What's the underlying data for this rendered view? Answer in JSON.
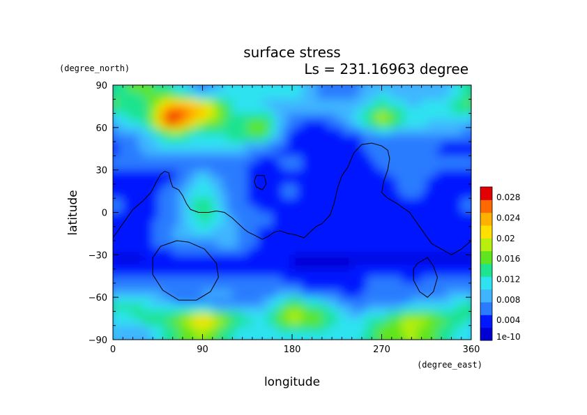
{
  "chart_data": {
    "type": "heatmap",
    "title": "surface stress",
    "subtitle": "Ls = 231.16963 degree",
    "xlabel": "longitude",
    "ylabel": "latitude",
    "x_unit": "(degree_east)",
    "y_unit": "(degree_north)",
    "xlim": [
      0,
      360
    ],
    "ylim": [
      -90,
      90
    ],
    "x_ticks": [
      "0",
      "90",
      "180",
      "270",
      "360"
    ],
    "y_ticks": [
      "90",
      "60",
      "30",
      "0",
      "-30",
      "-60",
      "-90"
    ],
    "colorbar": {
      "tick_labels": [
        "0.028",
        "0.024",
        "0.02",
        "0.016",
        "0.012",
        "0.008",
        "0.004",
        "1e-10"
      ],
      "tick_values": [
        0.028,
        0.024,
        0.02,
        0.016,
        0.012,
        0.008,
        0.004,
        0
      ],
      "range": [
        0,
        0.03
      ],
      "colors": [
        "#0000d2",
        "#0018ff",
        "#2a7bff",
        "#3fb5ff",
        "#2fe2f0",
        "#1ee38f",
        "#5fe51f",
        "#b7ef0e",
        "#ffe000",
        "#ffb100",
        "#ff6a00",
        "#e20000"
      ]
    },
    "field": {
      "lon": [
        0,
        30,
        60,
        90,
        120,
        150,
        180,
        210,
        240,
        270,
        300,
        330,
        360
      ],
      "lat": [
        85,
        75,
        65,
        55,
        45,
        35,
        25,
        15,
        5,
        -5,
        -15,
        -25,
        -35,
        -45,
        -55,
        -65,
        -75,
        -85
      ],
      "values": [
        [
          0.014,
          0.016,
          0.013,
          0.006,
          0.012,
          0.01,
          0.012,
          0.006,
          0.006,
          0.01,
          0.008,
          0.008,
          0.014
        ],
        [
          0.016,
          0.012,
          0.026,
          0.024,
          0.012,
          0.01,
          0.008,
          0.01,
          0.008,
          0.014,
          0.01,
          0.012,
          0.016
        ],
        [
          0.01,
          0.014,
          0.03,
          0.02,
          0.014,
          0.016,
          0.006,
          0.004,
          0.01,
          0.02,
          0.012,
          0.01,
          0.01
        ],
        [
          0.006,
          0.008,
          0.016,
          0.01,
          0.014,
          0.016,
          0.004,
          0.004,
          0.004,
          0.008,
          0.006,
          0.008,
          0.006
        ],
        [
          0.004,
          0.008,
          0.01,
          0.01,
          0.01,
          0.006,
          0.004,
          0.003,
          0.004,
          0.006,
          0.006,
          0.004,
          0.004
        ],
        [
          0.006,
          0.006,
          0.006,
          0.004,
          0.006,
          0.004,
          0.006,
          0.004,
          0.003,
          0.006,
          0.008,
          0.006,
          0.006
        ],
        [
          0.004,
          0.004,
          0.004,
          0.01,
          0.006,
          0.004,
          0.004,
          0.003,
          0.003,
          0.004,
          0.006,
          0.004,
          0.004
        ],
        [
          0.004,
          0.004,
          0.006,
          0.012,
          0.006,
          0.004,
          0.006,
          0.003,
          0.003,
          0.004,
          0.006,
          0.004,
          0.004
        ],
        [
          0.006,
          0.004,
          0.006,
          0.016,
          0.006,
          0.004,
          0.004,
          0.003,
          0.003,
          0.003,
          0.004,
          0.004,
          0.006
        ],
        [
          0.004,
          0.004,
          0.006,
          0.014,
          0.008,
          0.006,
          0.004,
          0.003,
          0.003,
          0.004,
          0.004,
          0.003,
          0.004
        ],
        [
          0.004,
          0.004,
          0.008,
          0.01,
          0.008,
          0.004,
          0.004,
          0.003,
          0.003,
          0.004,
          0.004,
          0.003,
          0.004
        ],
        [
          0.003,
          0.004,
          0.006,
          0.006,
          0.008,
          0.004,
          0.004,
          0.003,
          0.003,
          0.003,
          0.003,
          0.003,
          0.003
        ],
        [
          0.002,
          0.002,
          0.002,
          0.002,
          0.002,
          0.002,
          0.002,
          0.002,
          0.002,
          0.002,
          0.002,
          0.002,
          0.002
        ],
        [
          0.004,
          0.004,
          0.006,
          0.004,
          0.004,
          0.006,
          0.004,
          0.003,
          0.004,
          0.006,
          0.004,
          0.006,
          0.004
        ],
        [
          0.008,
          0.008,
          0.006,
          0.008,
          0.008,
          0.006,
          0.006,
          0.004,
          0.004,
          0.006,
          0.006,
          0.006,
          0.008
        ],
        [
          0.014,
          0.012,
          0.008,
          0.006,
          0.006,
          0.008,
          0.016,
          0.012,
          0.006,
          0.006,
          0.008,
          0.01,
          0.014
        ],
        [
          0.01,
          0.014,
          0.016,
          0.024,
          0.016,
          0.012,
          0.02,
          0.016,
          0.01,
          0.014,
          0.02,
          0.016,
          0.012
        ],
        [
          0.01,
          0.008,
          0.014,
          0.018,
          0.012,
          0.01,
          0.012,
          0.012,
          0.01,
          0.016,
          0.018,
          0.014,
          0.01
        ]
      ]
    },
    "topography_contours": [
      {
        "points": [
          [
            0,
            -18
          ],
          [
            10,
            -8
          ],
          [
            20,
            2
          ],
          [
            30,
            8
          ],
          [
            38,
            14
          ],
          [
            44,
            22
          ],
          [
            48,
            27
          ],
          [
            52,
            29
          ],
          [
            56,
            28
          ],
          [
            58,
            22
          ],
          [
            60,
            18
          ],
          [
            66,
            16
          ],
          [
            70,
            12
          ],
          [
            74,
            6
          ],
          [
            78,
            2
          ],
          [
            86,
            0
          ],
          [
            96,
            0
          ],
          [
            104,
            1
          ],
          [
            112,
            0
          ],
          [
            120,
            -4
          ],
          [
            126,
            -8
          ],
          [
            132,
            -12
          ],
          [
            136,
            -14
          ],
          [
            142,
            -16
          ],
          [
            150,
            -19
          ],
          [
            156,
            -17
          ],
          [
            162,
            -14
          ],
          [
            168,
            -13
          ],
          [
            176,
            -15
          ],
          [
            184,
            -16
          ],
          [
            192,
            -18
          ],
          [
            198,
            -14
          ],
          [
            204,
            -10
          ],
          [
            210,
            -8
          ],
          [
            218,
            -2
          ],
          [
            222,
            6
          ],
          [
            226,
            18
          ],
          [
            230,
            26
          ],
          [
            236,
            32
          ],
          [
            242,
            42
          ],
          [
            250,
            48
          ],
          [
            260,
            49
          ],
          [
            270,
            47
          ],
          [
            276,
            44
          ],
          [
            278,
            38
          ],
          [
            276,
            30
          ],
          [
            272,
            22
          ],
          [
            270,
            14
          ],
          [
            276,
            10
          ],
          [
            286,
            6
          ],
          [
            298,
            0
          ],
          [
            306,
            -8
          ],
          [
            314,
            -16
          ],
          [
            320,
            -22
          ],
          [
            330,
            -26
          ],
          [
            340,
            -30
          ],
          [
            350,
            -26
          ],
          [
            360,
            -20
          ]
        ]
      },
      {
        "points": [
          [
            64,
            -20
          ],
          [
            76,
            -21
          ],
          [
            92,
            -26
          ],
          [
            104,
            -36
          ],
          [
            106,
            -46
          ],
          [
            98,
            -56
          ],
          [
            84,
            -62
          ],
          [
            66,
            -62
          ],
          [
            50,
            -55
          ],
          [
            40,
            -44
          ],
          [
            40,
            -32
          ],
          [
            48,
            -24
          ],
          [
            64,
            -20
          ]
        ]
      },
      {
        "points": [
          [
            144,
            26
          ],
          [
            152,
            26
          ],
          [
            154,
            20
          ],
          [
            150,
            16
          ],
          [
            144,
            18
          ],
          [
            142,
            22
          ],
          [
            144,
            26
          ]
        ]
      },
      {
        "points": [
          [
            306,
            -36
          ],
          [
            316,
            -32
          ],
          [
            322,
            -38
          ],
          [
            326,
            -46
          ],
          [
            322,
            -56
          ],
          [
            316,
            -60
          ],
          [
            308,
            -56
          ],
          [
            302,
            -48
          ],
          [
            302,
            -40
          ],
          [
            306,
            -36
          ]
        ]
      }
    ]
  }
}
